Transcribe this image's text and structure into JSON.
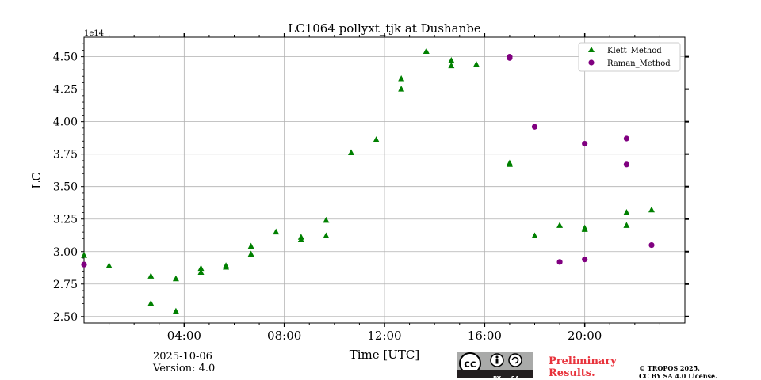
{
  "chart_data": {
    "type": "scatter",
    "title": "LC1064 pollyxt_tjk at Dushanbe",
    "xlabel": "Time [UTC]",
    "ylabel": "LC",
    "y_multiplier": "1e14",
    "xlim_hours": [
      0,
      24
    ],
    "ylim": [
      2.45,
      4.65
    ],
    "x_ticks": [
      {
        "hour": 4,
        "label": "04:00"
      },
      {
        "hour": 8,
        "label": "08:00"
      },
      {
        "hour": 12,
        "label": "12:00"
      },
      {
        "hour": 16,
        "label": "16:00"
      },
      {
        "hour": 20,
        "label": "20:00"
      }
    ],
    "y_ticks": [
      {
        "value": 2.5,
        "label": "2.50"
      },
      {
        "value": 2.75,
        "label": "2.75"
      },
      {
        "value": 3.0,
        "label": "3.00"
      },
      {
        "value": 3.25,
        "label": "3.25"
      },
      {
        "value": 3.5,
        "label": "3.50"
      },
      {
        "value": 3.75,
        "label": "3.75"
      },
      {
        "value": 4.0,
        "label": "4.00"
      },
      {
        "value": 4.25,
        "label": "4.25"
      },
      {
        "value": 4.5,
        "label": "4.50"
      }
    ],
    "grid": true,
    "legend_position": "top-right",
    "series": [
      {
        "name": "Klett_Method",
        "marker": "triangle",
        "color": "#008000",
        "points": [
          {
            "x": 0.0,
            "y": 2.97
          },
          {
            "x": 1.0,
            "y": 2.89
          },
          {
            "x": 2.67,
            "y": 2.81
          },
          {
            "x": 2.67,
            "y": 2.6
          },
          {
            "x": 3.67,
            "y": 2.79
          },
          {
            "x": 3.67,
            "y": 2.54
          },
          {
            "x": 4.67,
            "y": 2.87
          },
          {
            "x": 4.67,
            "y": 2.84
          },
          {
            "x": 5.67,
            "y": 2.89
          },
          {
            "x": 5.67,
            "y": 2.88
          },
          {
            "x": 6.67,
            "y": 3.04
          },
          {
            "x": 6.67,
            "y": 2.98
          },
          {
            "x": 7.67,
            "y": 3.15
          },
          {
            "x": 8.67,
            "y": 3.11
          },
          {
            "x": 8.67,
            "y": 3.09
          },
          {
            "x": 9.67,
            "y": 3.24
          },
          {
            "x": 9.67,
            "y": 3.12
          },
          {
            "x": 10.67,
            "y": 3.76
          },
          {
            "x": 11.67,
            "y": 3.86
          },
          {
            "x": 12.67,
            "y": 4.33
          },
          {
            "x": 12.67,
            "y": 4.25
          },
          {
            "x": 13.67,
            "y": 4.54
          },
          {
            "x": 14.67,
            "y": 4.47
          },
          {
            "x": 14.67,
            "y": 4.43
          },
          {
            "x": 15.67,
            "y": 4.44
          },
          {
            "x": 17.0,
            "y": 3.68
          },
          {
            "x": 17.0,
            "y": 3.67
          },
          {
            "x": 18.0,
            "y": 3.12
          },
          {
            "x": 19.0,
            "y": 3.2
          },
          {
            "x": 20.0,
            "y": 3.18
          },
          {
            "x": 20.0,
            "y": 3.17
          },
          {
            "x": 21.67,
            "y": 3.3
          },
          {
            "x": 21.67,
            "y": 3.2
          },
          {
            "x": 22.67,
            "y": 3.32
          }
        ]
      },
      {
        "name": "Raman_Method",
        "marker": "circle",
        "color": "#800080",
        "points": [
          {
            "x": 0.0,
            "y": 2.9
          },
          {
            "x": 17.0,
            "y": 4.5
          },
          {
            "x": 17.0,
            "y": 4.49
          },
          {
            "x": 18.0,
            "y": 3.96
          },
          {
            "x": 19.0,
            "y": 2.92
          },
          {
            "x": 20.0,
            "y": 3.83
          },
          {
            "x": 20.0,
            "y": 2.94
          },
          {
            "x": 21.67,
            "y": 3.87
          },
          {
            "x": 21.67,
            "y": 3.67
          },
          {
            "x": 22.67,
            "y": 3.05
          }
        ]
      }
    ]
  },
  "footer": {
    "date": "2025-10-06",
    "version": "Version: 4.0",
    "cc_by": "BY",
    "cc_sa": "SA",
    "cc_logo": "cc",
    "preliminary_line1": "Preliminary",
    "preliminary_line2": "Results.",
    "license_line1": "© TROPOS 2025.",
    "license_line2": "CC BY SA 4.0 License."
  }
}
